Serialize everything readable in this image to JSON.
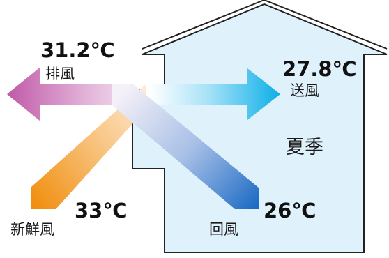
{
  "flows": {
    "exhaust": {
      "temp": "31.2℃",
      "label": "排風",
      "color_from": "#c05aa8",
      "color_to": "#f4eaf4"
    },
    "supply": {
      "temp": "27.8℃",
      "label": "送風",
      "color_from": "#ffffff",
      "color_to": "#10b0e8"
    },
    "fresh": {
      "temp": "33℃",
      "label": "新鮮風",
      "color_from": "#f08c0a",
      "color_to": "#fff6ea"
    },
    "return": {
      "temp": "26℃",
      "label": "回風",
      "color_from": "#eef2fb",
      "color_to": "#1768c4"
    }
  },
  "season": "夏季",
  "colors": {
    "house_fill": "#dff1fb",
    "house_stroke": "#222222"
  }
}
